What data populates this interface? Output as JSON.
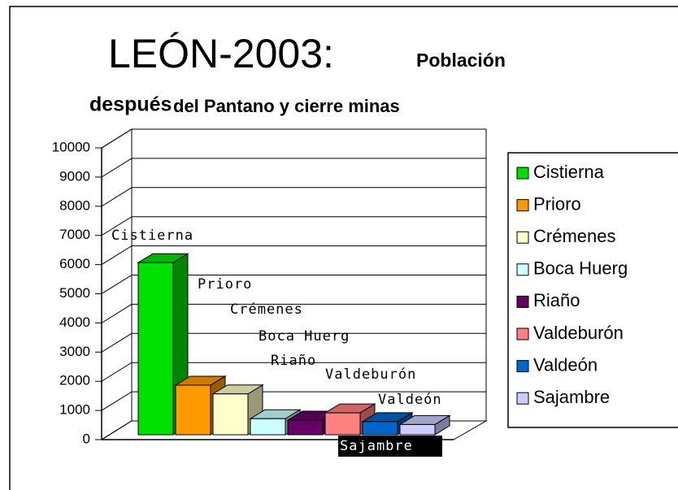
{
  "chart_data": {
    "type": "bar3d",
    "title": [
      "LEÓN-2003:",
      "Población",
      "después",
      "del Pantano y cierre minas"
    ],
    "categories": [
      "Cistierna",
      "Prioro",
      "Crémenes",
      "Boca Huerg",
      "Riaño",
      "Valdeburón",
      "Valdeón",
      "Sajambre"
    ],
    "values": [
      5900,
      1700,
      1400,
      550,
      500,
      750,
      450,
      350
    ],
    "colors": [
      "#00e000",
      "#ff9900",
      "#ffffcc",
      "#ccffff",
      "#660066",
      "#ff8080",
      "#0066cc",
      "#ccccff"
    ],
    "ylim": [
      0,
      10000
    ],
    "yticks": [
      0,
      1000,
      2000,
      3000,
      4000,
      5000,
      6000,
      7000,
      8000,
      9000,
      10000
    ],
    "grid": true,
    "legend": "right"
  }
}
